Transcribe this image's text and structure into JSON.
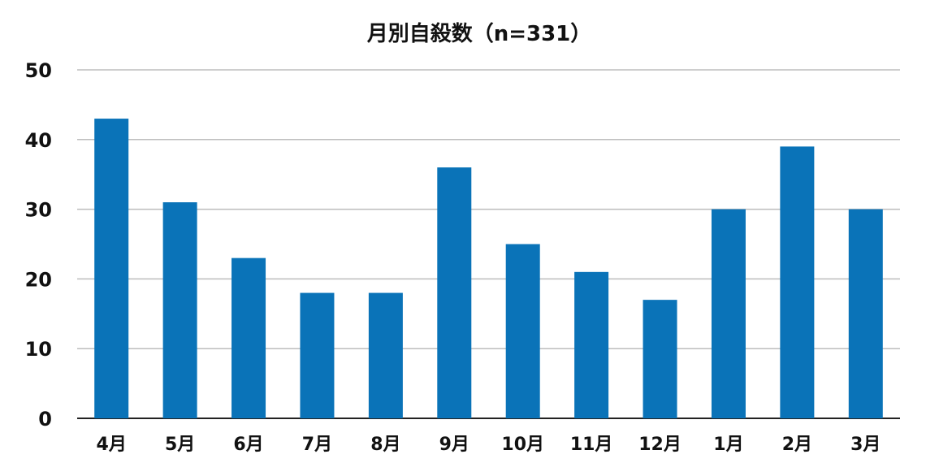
{
  "chart_data": {
    "type": "bar",
    "title": "月別自殺数（n=331）",
    "categories": [
      "4月",
      "5月",
      "6月",
      "7月",
      "8月",
      "9月",
      "10月",
      "11月",
      "12月",
      "1月",
      "2月",
      "3月"
    ],
    "values": [
      43,
      31,
      23,
      18,
      18,
      36,
      25,
      21,
      17,
      30,
      39,
      30
    ],
    "xlabel": "",
    "ylabel": "",
    "ylim": [
      0,
      50
    ],
    "yticks": [
      0,
      10,
      20,
      30,
      40,
      50
    ],
    "grid": true,
    "legend": "none",
    "bar_color": "#0a73b8",
    "grid_color": "#bdbdbd"
  }
}
